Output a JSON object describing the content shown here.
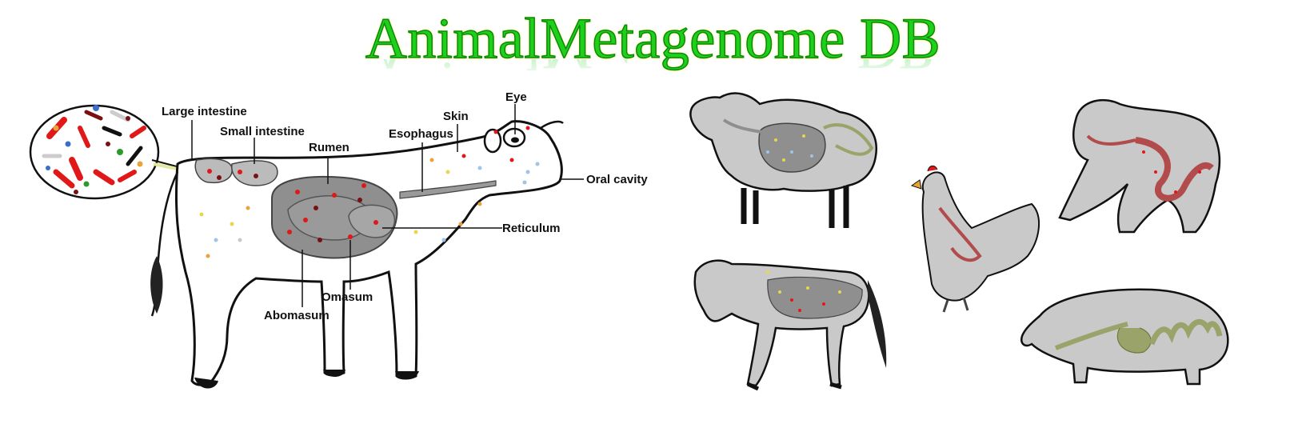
{
  "title": "AnimalMetagenome DB",
  "cow_labels": {
    "large_intestine": "Large intestine",
    "small_intestine": "Small intestine",
    "rumen": "Rumen",
    "esophagus": "Esophagus",
    "skin": "Skin",
    "eye": "Eye",
    "oral_cavity": "Oral cavity",
    "reticulum": "Reticulum",
    "omasum": "Omasum",
    "abomasum": "Abomasum"
  },
  "colors": {
    "title_fill": "#1ed01a",
    "title_outline": "#0b8a0b",
    "animal_fill": "#c9c9c9",
    "gut_fill": "#8f8f8f",
    "microbe_red": "#e01818",
    "microbe_dark": "#7a1010",
    "microbe_yellow": "#e6d84a",
    "microbe_blue": "#9ec4e8"
  },
  "icons": [
    "microbe-inset-icon",
    "cow-icon",
    "sheep-icon",
    "horse-icon",
    "chicken-icon",
    "gorilla-icon",
    "pig-icon"
  ]
}
